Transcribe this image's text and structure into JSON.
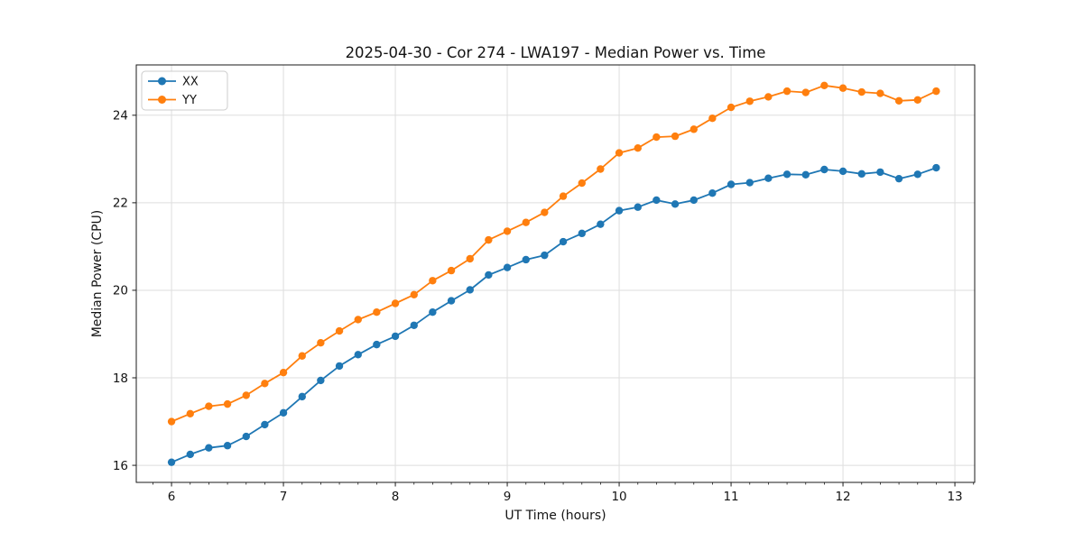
{
  "title": "2025-04-30 - Cor 274 - LWA197 - Median Power vs. Time",
  "chart_data": {
    "type": "line",
    "title": "2025-04-30 - Cor 274 - LWA197 - Median Power vs. Time",
    "xlabel": "UT Time (hours)",
    "ylabel": "Median Power (CPU)",
    "xlim": [
      5.685,
      13.177
    ],
    "ylim": [
      15.61,
      25.15
    ],
    "xticks": [
      6,
      7,
      8,
      9,
      10,
      11,
      12,
      13
    ],
    "yticks": [
      16,
      18,
      20,
      22,
      24
    ],
    "x_minor_step": 0.16667,
    "grid": "major",
    "grid_color": "#dedede",
    "spine_color": "#1a1a1a",
    "legend_position": "upper-left",
    "x": [
      6.0,
      6.167,
      6.333,
      6.5,
      6.667,
      6.833,
      7.0,
      7.167,
      7.333,
      7.5,
      7.667,
      7.833,
      8.0,
      8.167,
      8.333,
      8.5,
      8.667,
      8.833,
      9.0,
      9.167,
      9.333,
      9.5,
      9.667,
      9.833,
      10.0,
      10.167,
      10.333,
      10.5,
      10.667,
      10.833,
      11.0,
      11.167,
      11.333,
      11.5,
      11.667,
      11.833,
      12.0,
      12.167,
      12.333,
      12.5,
      12.667,
      12.833
    ],
    "series": [
      {
        "name": "XX",
        "color": "#1f77b4",
        "values": [
          16.07,
          16.25,
          16.4,
          16.45,
          16.66,
          16.93,
          17.2,
          17.57,
          17.94,
          18.27,
          18.53,
          18.76,
          18.95,
          19.2,
          19.5,
          19.76,
          20.01,
          20.35,
          20.52,
          20.7,
          20.8,
          21.11,
          21.3,
          21.51,
          21.82,
          21.9,
          22.06,
          21.97,
          22.06,
          22.22,
          22.42,
          22.46,
          22.56,
          22.65,
          22.64,
          22.76,
          22.72,
          22.66,
          22.7,
          22.55,
          22.65,
          22.8
        ]
      },
      {
        "name": "YY",
        "color": "#ff7f0e",
        "values": [
          17.0,
          17.18,
          17.35,
          17.4,
          17.6,
          17.87,
          18.12,
          18.5,
          18.8,
          19.07,
          19.33,
          19.5,
          19.7,
          19.9,
          20.22,
          20.45,
          20.72,
          21.15,
          21.35,
          21.55,
          21.78,
          22.15,
          22.45,
          22.77,
          23.14,
          23.25,
          23.5,
          23.52,
          23.68,
          23.93,
          24.18,
          24.32,
          24.42,
          24.55,
          24.52,
          24.68,
          24.62,
          24.53,
          24.5,
          24.33,
          24.35,
          24.55
        ]
      }
    ]
  }
}
